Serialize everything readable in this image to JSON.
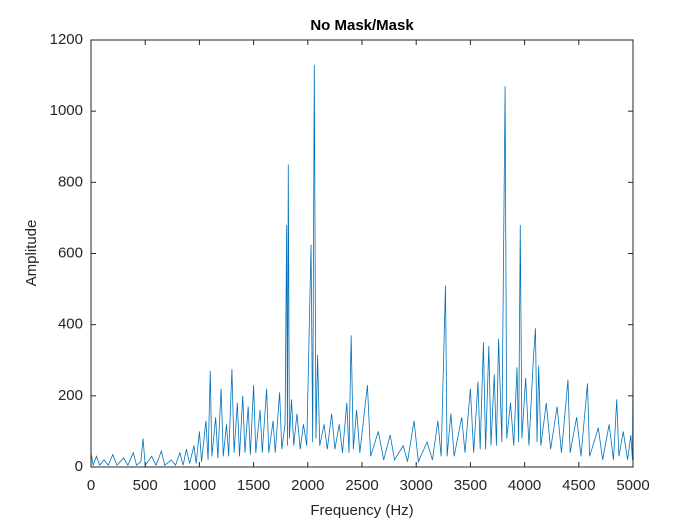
{
  "chart_data": {
    "type": "line",
    "title": "No Mask/Mask",
    "x_label": "Frequency (Hz)",
    "y_label": "Amplitude",
    "color": "#0072bd",
    "x": [
      0,
      20,
      50,
      80,
      120,
      160,
      200,
      240,
      300,
      340,
      390,
      420,
      460,
      480,
      500,
      560,
      600,
      650,
      680,
      740,
      780,
      820,
      850,
      880,
      910,
      950,
      970,
      1000,
      1020,
      1060,
      1080,
      1100,
      1115,
      1150,
      1170,
      1200,
      1220,
      1250,
      1270,
      1300,
      1320,
      1350,
      1370,
      1400,
      1420,
      1450,
      1470,
      1500,
      1520,
      1560,
      1580,
      1620,
      1640,
      1680,
      1700,
      1740,
      1760,
      1790,
      1805,
      1812,
      1820,
      1830,
      1850,
      1870,
      1900,
      1930,
      1960,
      1990,
      2030,
      2045,
      2060,
      2075,
      2090,
      2110,
      2150,
      2180,
      2220,
      2250,
      2290,
      2320,
      2360,
      2380,
      2400,
      2420,
      2450,
      2480,
      2550,
      2580,
      2650,
      2700,
      2760,
      2800,
      2880,
      2920,
      2980,
      3020,
      3100,
      3150,
      3200,
      3230,
      3270,
      3285,
      3320,
      3350,
      3420,
      3450,
      3500,
      3530,
      3570,
      3590,
      3620,
      3640,
      3670,
      3690,
      3720,
      3740,
      3760,
      3790,
      3820,
      3835,
      3870,
      3900,
      3930,
      3945,
      3960,
      3975,
      4010,
      4040,
      4080,
      4100,
      4115,
      4130,
      4150,
      4200,
      4240,
      4300,
      4340,
      4400,
      4420,
      4480,
      4520,
      4580,
      4600,
      4680,
      4720,
      4780,
      4820,
      4850,
      4870,
      4910,
      4950,
      4980,
      4995,
      5000
    ],
    "values": [
      40,
      5,
      30,
      5,
      20,
      5,
      35,
      5,
      25,
      5,
      40,
      5,
      15,
      80,
      5,
      30,
      5,
      45,
      5,
      20,
      5,
      40,
      5,
      50,
      10,
      60,
      10,
      100,
      15,
      130,
      20,
      270,
      30,
      140,
      25,
      220,
      30,
      120,
      30,
      275,
      40,
      180,
      30,
      200,
      40,
      170,
      35,
      230,
      40,
      160,
      40,
      220,
      40,
      130,
      40,
      210,
      50,
      120,
      680,
      60,
      850,
      80,
      190,
      60,
      150,
      50,
      120,
      60,
      625,
      70,
      1130,
      80,
      315,
      60,
      120,
      50,
      150,
      50,
      120,
      40,
      180,
      40,
      370,
      50,
      160,
      40,
      230,
      30,
      100,
      20,
      90,
      20,
      60,
      15,
      130,
      15,
      70,
      20,
      130,
      30,
      510,
      30,
      150,
      30,
      140,
      40,
      220,
      40,
      240,
      50,
      350,
      50,
      340,
      60,
      260,
      60,
      360,
      70,
      1070,
      80,
      180,
      60,
      280,
      70,
      680,
      80,
      250,
      60,
      300,
      390,
      70,
      285,
      60,
      180,
      50,
      170,
      40,
      245,
      40,
      140,
      30,
      235,
      30,
      110,
      20,
      120,
      20,
      190,
      30,
      100,
      20,
      90,
      20,
      305
    ],
    "xlim": [
      0,
      5000
    ],
    "ylim": [
      0,
      1200
    ],
    "xticks": [
      0,
      500,
      1000,
      1500,
      2000,
      2500,
      3000,
      3500,
      4000,
      4500,
      5000
    ],
    "yticks": [
      0,
      200,
      400,
      600,
      800,
      1000,
      1200
    ]
  }
}
